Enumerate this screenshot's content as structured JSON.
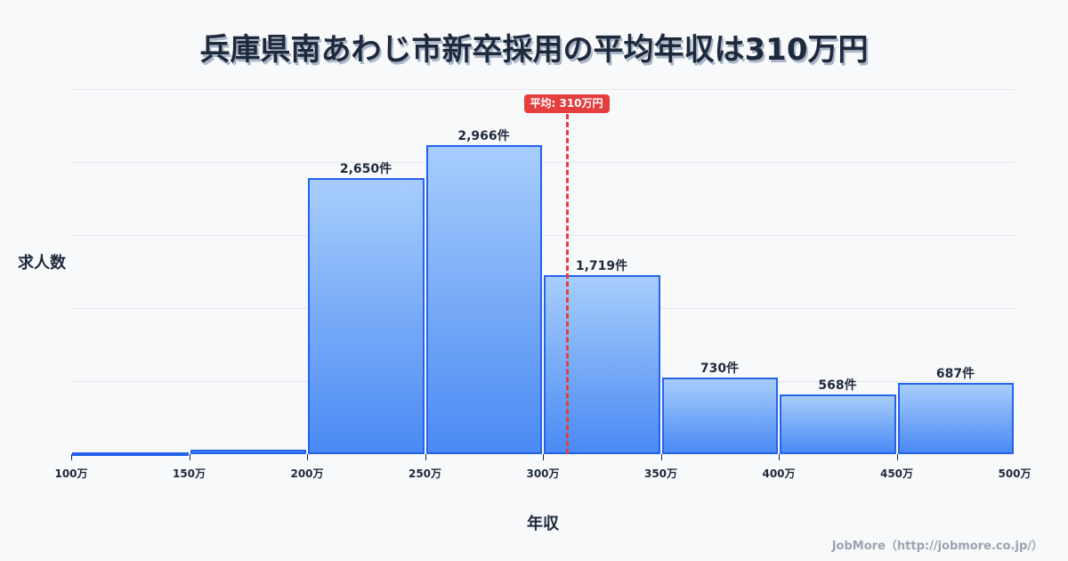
{
  "title": "兵庫県南あわじ市新卒採用の平均年収は310万円",
  "credit": "JobMore（http://jobmore.co.jp/）",
  "chart_data": {
    "type": "bar",
    "title": "兵庫県南あわじ市新卒採用の平均年収は310万円",
    "xlabel": "年収",
    "ylabel": "求人数",
    "categories": [
      "100-150万",
      "150-200万",
      "200-250万",
      "250-300万",
      "300-350万",
      "350-400万",
      "400-450万",
      "450-500万"
    ],
    "values": [
      2,
      45,
      2650,
      2966,
      1719,
      730,
      568,
      687
    ],
    "value_labels": [
      "",
      "",
      "2,650件",
      "2,966件",
      "1,719件",
      "730件",
      "568件",
      "687件"
    ],
    "x_ticks": [
      "100万",
      "150万",
      "200万",
      "250万",
      "300万",
      "350万",
      "400万",
      "450万",
      "500万"
    ],
    "ylim": [
      0,
      3500
    ],
    "grid": true,
    "average": {
      "value": 310,
      "label": "平均: 310万円",
      "color": "#e53e3e"
    },
    "bar_color": "#4a8af4",
    "bar_border_color": "#2563eb"
  }
}
